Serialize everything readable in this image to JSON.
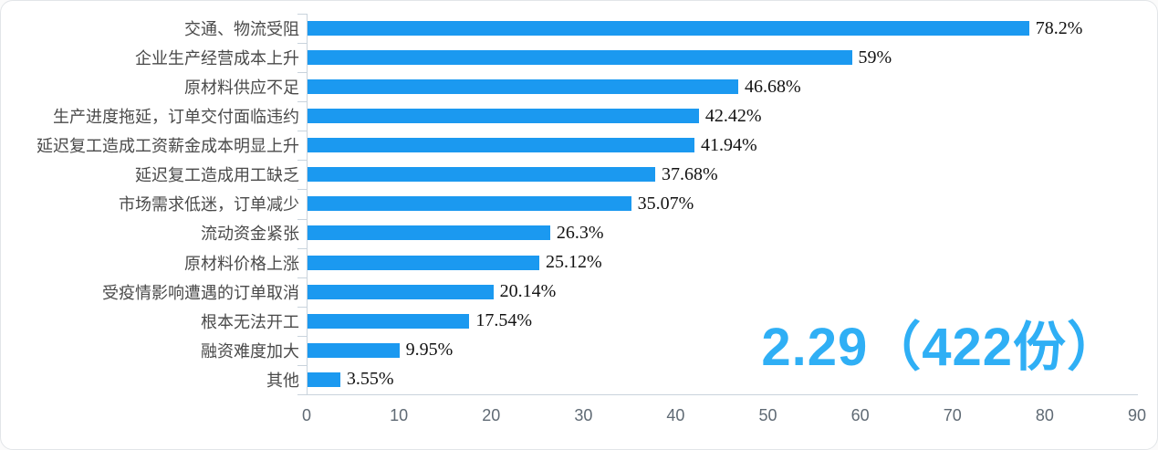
{
  "chart_data": {
    "type": "bar",
    "orientation": "horizontal",
    "title": "",
    "xlabel": "",
    "ylabel": "",
    "categories": [
      "交通、物流受阻",
      "企业生产经营成本上升",
      "原材料供应不足",
      "生产进度拖延，订单交付面临违约",
      "延迟复工造成工资薪金成本明显上升",
      "延迟复工造成用工缺乏",
      "市场需求低迷，订单减少",
      "流动资金紧张",
      "原材料价格上涨",
      "受疫情影响遭遇的订单取消",
      "根本无法开工",
      "融资难度加大",
      "其他"
    ],
    "values": [
      78.2,
      59,
      46.68,
      42.42,
      41.94,
      37.68,
      35.07,
      26.3,
      25.12,
      20.14,
      17.54,
      9.95,
      3.55
    ],
    "value_labels": [
      "78.2%",
      "59%",
      "46.68%",
      "42.42%",
      "41.94%",
      "37.68%",
      "35.07%",
      "26.3%",
      "25.12%",
      "20.14%",
      "17.54%",
      "9.95%",
      "3.55%"
    ],
    "xlim": [
      0,
      90
    ],
    "xticks": [
      0,
      10,
      20,
      30,
      40,
      50,
      60,
      70,
      80,
      90
    ],
    "grid": false,
    "legend": null,
    "bar_color": "#1b99f0",
    "axis_color": "#c9d3dc",
    "annotation": {
      "text": "2.29（422份）",
      "color": "#2faff5"
    }
  }
}
